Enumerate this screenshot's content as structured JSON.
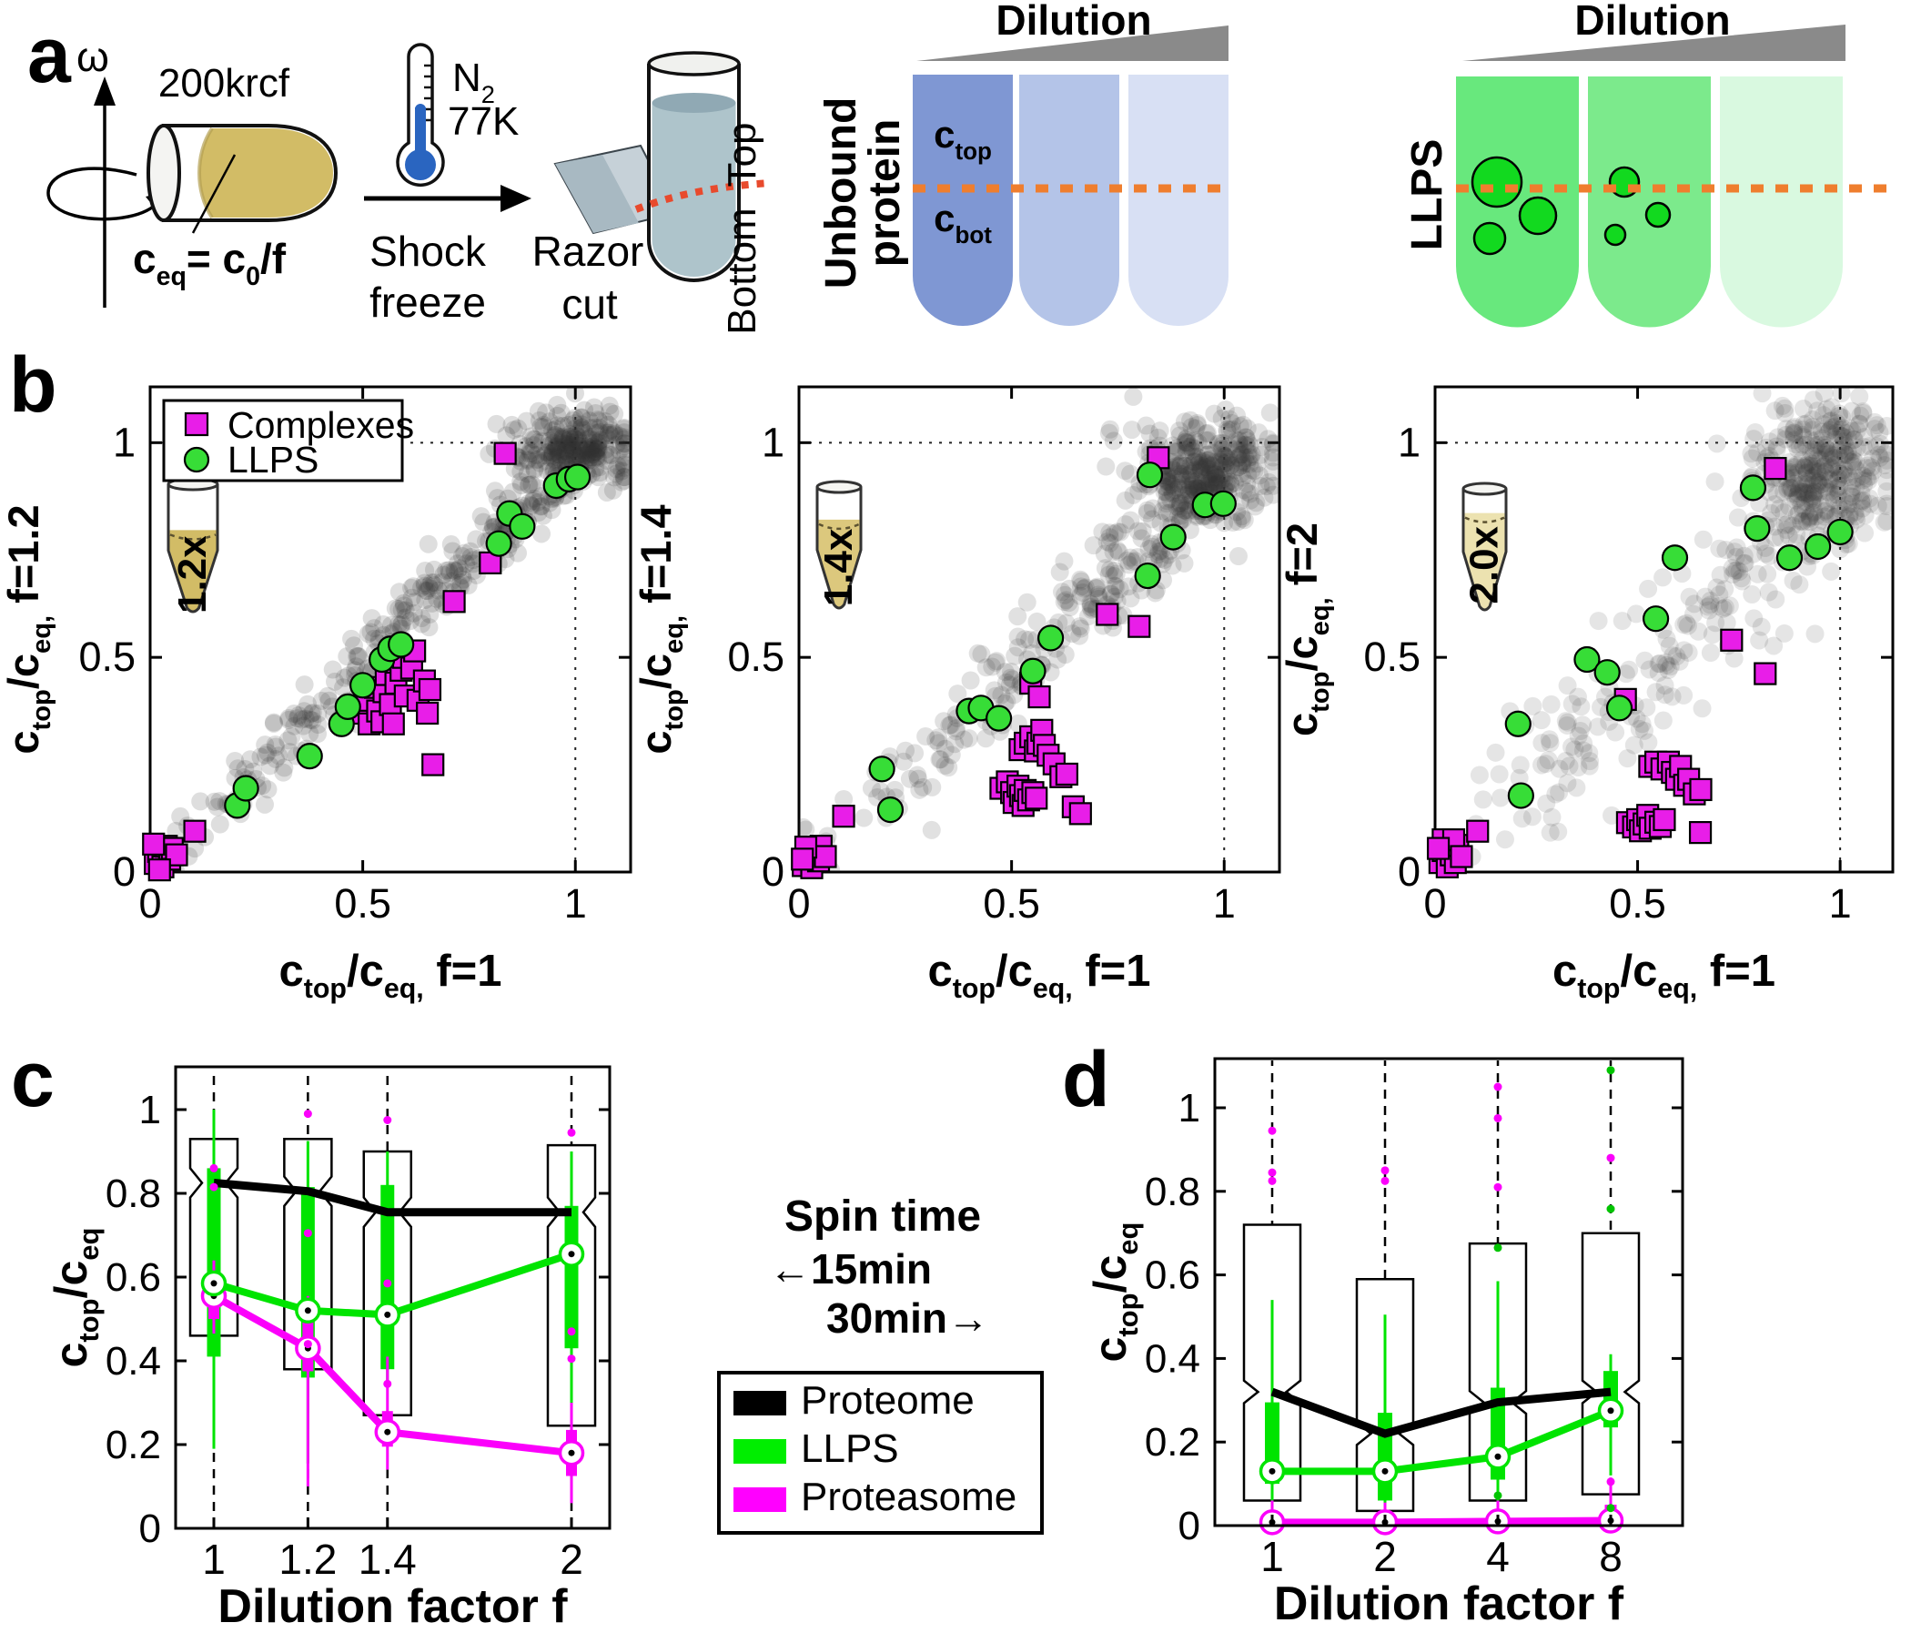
{
  "figure": {
    "panel_labels": {
      "a": "a",
      "b": "b",
      "c": "c",
      "d": "d"
    }
  },
  "panel_a": {
    "omega": "ω",
    "rcf_label": "200krcf",
    "ceq_formula": "c~eq~= c~0~/f",
    "n2": "N~2~",
    "temp": "77K",
    "shock_line1": "Shock",
    "shock_line2": "freeze",
    "razor_line1": "Razor",
    "razor_line2": "cut",
    "top_label": "Top",
    "bottom_label": "Bottom",
    "unbound_line1": "Unbound",
    "unbound_line2": "protein",
    "ctop": "c~top~",
    "cbot": "c~bot~",
    "dilution_left": "Dilution",
    "dilution_right": "Dilution",
    "llps_label": "LLPS"
  },
  "panel_c_extras": {
    "spin_title": "Spin time",
    "spin_left": "←15min",
    "spin_right": "30min→",
    "legend": [
      {
        "label": "Proteome",
        "color": "#000000"
      },
      {
        "label": "LLPS",
        "color": "#00ee00"
      },
      {
        "label": "Proteasome",
        "color": "#ff00ff"
      }
    ]
  },
  "chart_data": [
    {
      "id": "b1",
      "type": "scatter",
      "xlabel": "c~top~/c~eq,~  f=1",
      "ylabel": "c~top~/c~eq,~  f=1.2",
      "xticks": [
        0,
        0.5,
        1
      ],
      "yticks": [
        0,
        0.5,
        1
      ],
      "tick_labels": [
        "0",
        "0.5",
        "1"
      ],
      "xlim": [
        0,
        1.13
      ],
      "ylim": [
        0,
        1.13
      ],
      "ref_line": 1,
      "legend": [
        {
          "label": "Complexes",
          "marker": "square",
          "color": "#e81ee8"
        },
        {
          "label": "LLPS",
          "marker": "circle",
          "color": "#37dd37"
        }
      ],
      "tube_label": "1.2x",
      "llps_points": [
        [
          0.205,
          0.155
        ],
        [
          0.225,
          0.195
        ],
        [
          0.375,
          0.27
        ],
        [
          0.45,
          0.345
        ],
        [
          0.465,
          0.385
        ],
        [
          0.5,
          0.435
        ],
        [
          0.545,
          0.495
        ],
        [
          0.565,
          0.52
        ],
        [
          0.59,
          0.53
        ],
        [
          0.82,
          0.765
        ],
        [
          0.845,
          0.835
        ],
        [
          0.875,
          0.805
        ],
        [
          0.955,
          0.9
        ],
        [
          0.985,
          0.915
        ],
        [
          1.005,
          0.92
        ]
      ],
      "complex_points": [
        [
          0.012,
          0.02
        ],
        [
          0.02,
          0.048
        ],
        [
          0.03,
          0.012
        ],
        [
          0.038,
          0.06
        ],
        [
          0.046,
          0.03
        ],
        [
          0.052,
          0.055
        ],
        [
          0.062,
          0.04
        ],
        [
          0.022,
          0.005
        ],
        [
          0.008,
          0.065
        ],
        [
          0.105,
          0.095
        ],
        [
          0.495,
          0.37
        ],
        [
          0.51,
          0.4
        ],
        [
          0.515,
          0.345
        ],
        [
          0.53,
          0.43
        ],
        [
          0.535,
          0.375
        ],
        [
          0.545,
          0.35
        ],
        [
          0.55,
          0.42
        ],
        [
          0.555,
          0.46
        ],
        [
          0.565,
          0.39
        ],
        [
          0.572,
          0.345
        ],
        [
          0.578,
          0.44
        ],
        [
          0.585,
          0.52
        ],
        [
          0.59,
          0.47
        ],
        [
          0.596,
          0.5
        ],
        [
          0.6,
          0.41
        ],
        [
          0.615,
          0.475
        ],
        [
          0.622,
          0.515
        ],
        [
          0.63,
          0.4
        ],
        [
          0.645,
          0.445
        ],
        [
          0.652,
          0.37
        ],
        [
          0.658,
          0.425
        ],
        [
          0.665,
          0.25
        ],
        [
          0.715,
          0.63
        ],
        [
          0.8,
          0.72
        ],
        [
          0.835,
          0.975
        ]
      ],
      "cloud": {
        "n_band": 320,
        "n_blob": 230,
        "seed": 3,
        "spread": 0.042,
        "slope": 0.97,
        "blob": [
          0.99,
          0.985,
          0.075,
          0.045
        ],
        "alpha": 0.16
      }
    },
    {
      "id": "b2",
      "type": "scatter",
      "xlabel": "c~top~/c~eq,~  f=1",
      "ylabel": "c~top~/c~eq,~  f=1.4",
      "xticks": [
        0,
        0.5,
        1
      ],
      "yticks": [
        0,
        0.5,
        1
      ],
      "tick_labels": [
        "0",
        "0.5",
        "1"
      ],
      "xlim": [
        0,
        1.13
      ],
      "ylim": [
        0,
        1.13
      ],
      "ref_line": 1,
      "tube_label": "1.4x",
      "llps_points": [
        [
          0.195,
          0.24
        ],
        [
          0.215,
          0.145
        ],
        [
          0.4,
          0.375
        ],
        [
          0.428,
          0.382
        ],
        [
          0.47,
          0.358
        ],
        [
          0.55,
          0.468
        ],
        [
          0.592,
          0.545
        ],
        [
          0.82,
          0.69
        ],
        [
          0.825,
          0.925
        ],
        [
          0.88,
          0.78
        ],
        [
          0.955,
          0.855
        ],
        [
          0.998,
          0.858
        ]
      ],
      "complex_points": [
        [
          0.01,
          0.015
        ],
        [
          0.02,
          0.042
        ],
        [
          0.03,
          0.01
        ],
        [
          0.036,
          0.052
        ],
        [
          0.046,
          0.026
        ],
        [
          0.052,
          0.06
        ],
        [
          0.062,
          0.036
        ],
        [
          0.016,
          0.058
        ],
        [
          0.008,
          0.03
        ],
        [
          0.105,
          0.13
        ],
        [
          0.475,
          0.195
        ],
        [
          0.49,
          0.21
        ],
        [
          0.5,
          0.185
        ],
        [
          0.506,
          0.162
        ],
        [
          0.515,
          0.2
        ],
        [
          0.521,
          0.178
        ],
        [
          0.527,
          0.155
        ],
        [
          0.532,
          0.19
        ],
        [
          0.54,
          0.168
        ],
        [
          0.55,
          0.185
        ],
        [
          0.558,
          0.172
        ],
        [
          0.52,
          0.285
        ],
        [
          0.532,
          0.3
        ],
        [
          0.545,
          0.315
        ],
        [
          0.556,
          0.282
        ],
        [
          0.562,
          0.3
        ],
        [
          0.571,
          0.33
        ],
        [
          0.577,
          0.295
        ],
        [
          0.586,
          0.272
        ],
        [
          0.545,
          0.44
        ],
        [
          0.565,
          0.408
        ],
        [
          0.6,
          0.252
        ],
        [
          0.616,
          0.222
        ],
        [
          0.63,
          0.228
        ],
        [
          0.645,
          0.152
        ],
        [
          0.662,
          0.136
        ],
        [
          0.725,
          0.6
        ],
        [
          0.8,
          0.572
        ],
        [
          0.845,
          0.965
        ]
      ],
      "cloud": {
        "n_band": 310,
        "n_blob": 300,
        "seed": 7,
        "spread": 0.06,
        "slope": 0.93,
        "blob": [
          0.96,
          0.925,
          0.085,
          0.065
        ],
        "alpha": 0.15
      }
    },
    {
      "id": "b3",
      "type": "scatter",
      "xlabel": "c~top~/c~eq,~  f=1",
      "ylabel": "c~top~/c~eq,~  f=2",
      "xticks": [
        0,
        0.5,
        1
      ],
      "yticks": [
        0,
        0.5,
        1
      ],
      "tick_labels": [
        "0",
        "0.5",
        "1"
      ],
      "xlim": [
        0,
        1.13
      ],
      "ylim": [
        0,
        1.13
      ],
      "ref_line": 1,
      "tube_label": "2.0x",
      "llps_points": [
        [
          0.205,
          0.345
        ],
        [
          0.212,
          0.178
        ],
        [
          0.375,
          0.495
        ],
        [
          0.425,
          0.465
        ],
        [
          0.455,
          0.382
        ],
        [
          0.545,
          0.59
        ],
        [
          0.592,
          0.732
        ],
        [
          0.785,
          0.895
        ],
        [
          0.795,
          0.8
        ],
        [
          0.875,
          0.732
        ],
        [
          0.945,
          0.758
        ],
        [
          1.0,
          0.792
        ]
      ],
      "complex_points": [
        [
          0.012,
          0.022
        ],
        [
          0.02,
          0.05
        ],
        [
          0.03,
          0.012
        ],
        [
          0.04,
          0.04
        ],
        [
          0.05,
          0.022
        ],
        [
          0.056,
          0.062
        ],
        [
          0.02,
          0.075
        ],
        [
          0.046,
          0.075
        ],
        [
          0.065,
          0.036
        ],
        [
          0.008,
          0.055
        ],
        [
          0.105,
          0.095
        ],
        [
          0.475,
          0.115
        ],
        [
          0.49,
          0.105
        ],
        [
          0.5,
          0.122
        ],
        [
          0.507,
          0.096
        ],
        [
          0.516,
          0.112
        ],
        [
          0.525,
          0.132
        ],
        [
          0.531,
          0.102
        ],
        [
          0.545,
          0.116
        ],
        [
          0.556,
          0.106
        ],
        [
          0.566,
          0.122
        ],
        [
          0.655,
          0.092
        ],
        [
          0.53,
          0.246
        ],
        [
          0.545,
          0.256
        ],
        [
          0.56,
          0.24
        ],
        [
          0.576,
          0.256
        ],
        [
          0.586,
          0.232
        ],
        [
          0.596,
          0.216
        ],
        [
          0.606,
          0.246
        ],
        [
          0.616,
          0.202
        ],
        [
          0.626,
          0.216
        ],
        [
          0.64,
          0.182
        ],
        [
          0.656,
          0.192
        ],
        [
          0.47,
          0.402
        ],
        [
          0.732,
          0.54
        ],
        [
          0.815,
          0.462
        ],
        [
          0.84,
          0.94
        ]
      ],
      "cloud": {
        "n_band": 250,
        "n_blob": 300,
        "seed": 13,
        "spread": 0.1,
        "slope": 0.9,
        "blob": [
          0.95,
          0.93,
          0.085,
          0.075
        ],
        "alpha": 0.13
      }
    },
    {
      "id": "c",
      "type": "notched-box",
      "xlabel": "Dilution factor f",
      "ylabel": "c~top~/c~eq~",
      "categories": [
        "1",
        "1.2",
        "1.4",
        "2"
      ],
      "f_values": [
        1,
        1.2,
        1.4,
        2
      ],
      "ytick_values": [
        0,
        0.2,
        0.4,
        0.6,
        0.8,
        1
      ],
      "ytick_labels": [
        "0",
        "0.2",
        "0.4",
        "0.6",
        "0.8",
        "1"
      ],
      "ylim": [
        0,
        1.1
      ],
      "notch": 0.035,
      "series": {
        "proteome": {
          "color": "#000000",
          "median": [
            0.825,
            0.805,
            0.755,
            0.755
          ],
          "q1": [
            0.46,
            0.38,
            0.27,
            0.245
          ],
          "q3": [
            0.93,
            0.93,
            0.9,
            0.915
          ]
        },
        "llps": {
          "color": "#00e400",
          "median": [
            0.585,
            0.52,
            0.51,
            0.655
          ],
          "bar_lo": [
            0.41,
            0.36,
            0.38,
            0.43
          ],
          "bar_hi": [
            0.86,
            0.815,
            0.82,
            0.77
          ],
          "w_lo": [
            0.19,
            0.155,
            0.345,
            0.3
          ],
          "w_hi": [
            1.0,
            0.925,
            0.9,
            0.9
          ]
        },
        "proteasome": {
          "color": "#fb00fb",
          "median": [
            0.555,
            0.43,
            0.23,
            0.18
          ],
          "bar_lo": [
            0.5,
            0.375,
            0.195,
            0.125
          ],
          "bar_hi": [
            0.6,
            0.52,
            0.28,
            0.235
          ],
          "w_lo": [
            0.465,
            0.1,
            0.14,
            0.06
          ],
          "w_hi": [
            0.64,
            0.555,
            0.41,
            0.3
          ]
        }
      },
      "outliers_magenta": [
        [
          1,
          0.86
        ],
        [
          1,
          0.815
        ],
        [
          1.2,
          0.99
        ],
        [
          1.2,
          0.705
        ],
        [
          1.2,
          0.44
        ],
        [
          1.4,
          0.975
        ],
        [
          1.4,
          0.585
        ],
        [
          1.4,
          0.345
        ],
        [
          2,
          0.945
        ],
        [
          2,
          0.47
        ],
        [
          2,
          0.405
        ]
      ],
      "outliers_green": []
    },
    {
      "id": "d",
      "type": "notched-box",
      "xlabel": "Dilution factor f",
      "ylabel": "c~top~/c~eq~",
      "categories": [
        "1",
        "2",
        "4",
        "8"
      ],
      "f_values": [
        1,
        2,
        4,
        8
      ],
      "ytick_values": [
        0,
        0.2,
        0.4,
        0.6,
        0.8,
        1
      ],
      "ytick_labels": [
        "0",
        "0.2",
        "0.4",
        "0.6",
        "0.8",
        "1"
      ],
      "ylim": [
        0,
        1.12
      ],
      "notch": 0.027,
      "series": {
        "proteome": {
          "color": "#000000",
          "median": [
            0.32,
            0.22,
            0.295,
            0.32
          ],
          "q1": [
            0.06,
            0.035,
            0.06,
            0.075
          ],
          "q3": [
            0.72,
            0.59,
            0.675,
            0.7
          ]
        },
        "llps": {
          "color": "#00e400",
          "median": [
            0.13,
            0.13,
            0.165,
            0.275
          ],
          "bar_lo": [
            0.1,
            0.06,
            0.11,
            0.235
          ],
          "bar_hi": [
            0.295,
            0.27,
            0.33,
            0.37
          ],
          "w_lo": [
            0.005,
            0.005,
            0.05,
            0.12
          ],
          "w_hi": [
            0.54,
            0.505,
            0.585,
            0.41
          ]
        },
        "proteasome": {
          "color": "#fb00fb",
          "median": [
            0.008,
            0.008,
            0.01,
            0.012
          ],
          "bar_lo": [
            0.001,
            0.001,
            0.002,
            0.002
          ],
          "bar_hi": [
            0.032,
            0.03,
            0.034,
            0.05
          ],
          "w_lo": [
            0,
            0,
            0,
            0
          ],
          "w_hi": [
            0.06,
            0.055,
            0.06,
            0.115
          ]
        }
      },
      "outliers_magenta": [
        [
          1,
          0.945
        ],
        [
          1,
          0.845
        ],
        [
          1,
          0.825
        ],
        [
          2,
          0.85
        ],
        [
          2,
          0.825
        ],
        [
          4,
          1.05
        ],
        [
          4,
          0.975
        ],
        [
          4,
          0.81
        ],
        [
          8,
          0.88
        ],
        [
          8,
          0.105
        ]
      ],
      "outliers_green": [
        [
          4,
          0.665
        ],
        [
          4,
          0.072
        ],
        [
          8,
          1.09
        ],
        [
          8,
          0.758
        ],
        [
          8,
          0.042
        ]
      ]
    }
  ]
}
